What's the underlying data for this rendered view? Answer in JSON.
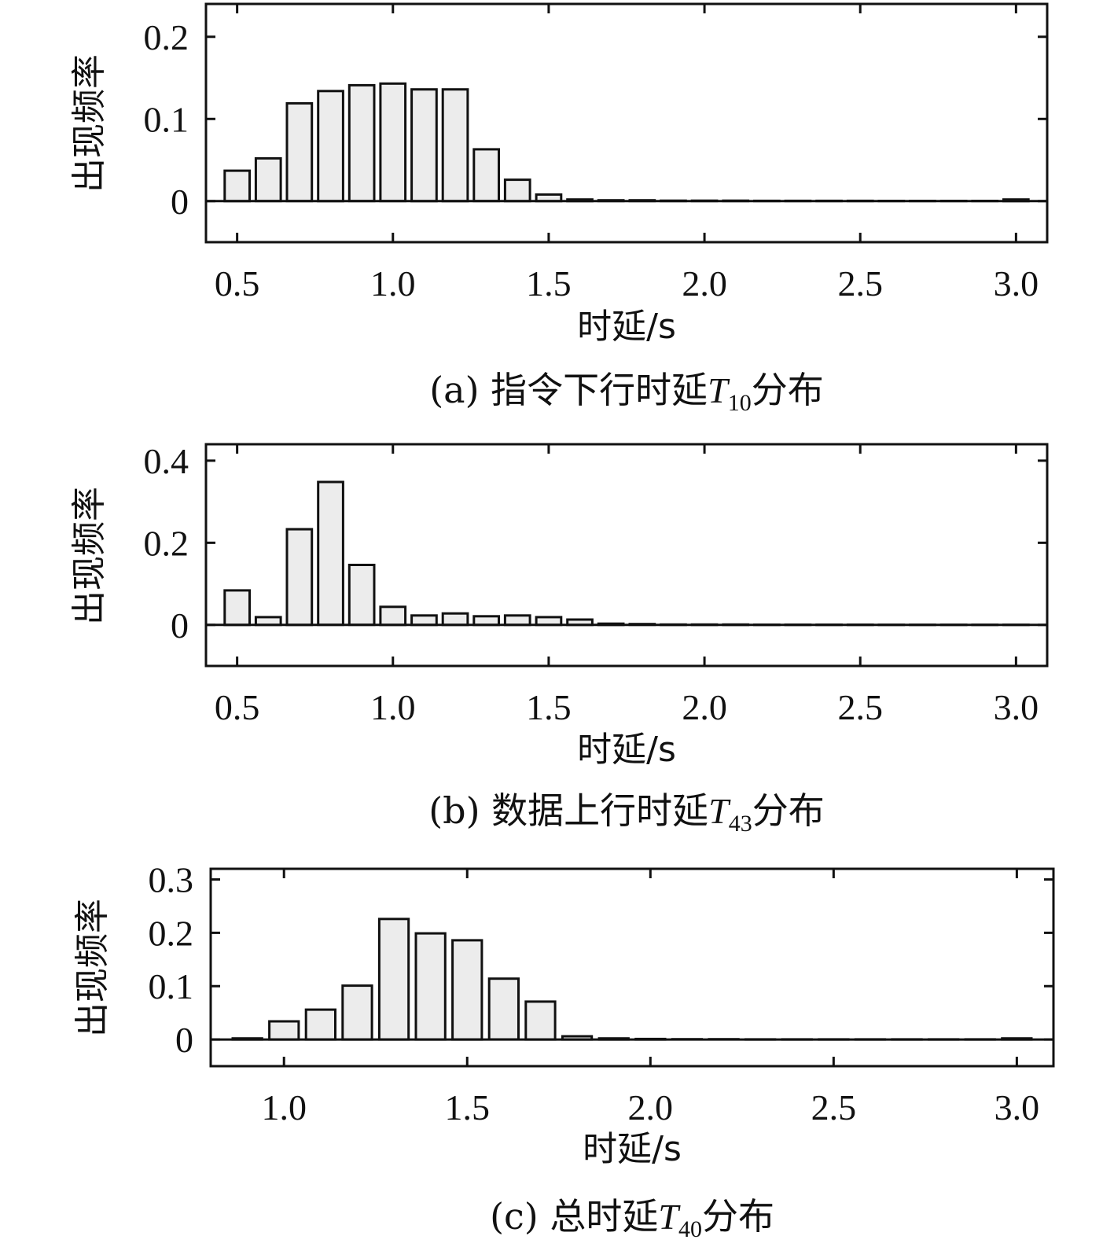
{
  "chart_data": [
    {
      "type": "bar",
      "title": "",
      "caption": {
        "prefix": "(a) 指令下行时延",
        "math": "T",
        "sub": "10",
        "suffix": "分布"
      },
      "xlabel": "时延/s",
      "ylabel": "出现频率",
      "xlim": [
        0.4,
        3.1
      ],
      "ylim": [
        -0.05,
        0.24
      ],
      "xticks": [
        0.5,
        1.0,
        1.5,
        2.0,
        2.5,
        3.0
      ],
      "xtick_labels": [
        "0.5",
        "1.0",
        "1.5",
        "2.0",
        "2.5",
        "3.0"
      ],
      "yticks": [
        0,
        0.1,
        0.2
      ],
      "ytick_labels": [
        "0",
        "0.1",
        "0.2"
      ],
      "bar_width": 0.08,
      "x": [
        0.5,
        0.6,
        0.7,
        0.8,
        0.9,
        1.0,
        1.1,
        1.2,
        1.3,
        1.4,
        1.5,
        1.6,
        1.7,
        1.8,
        1.9,
        2.0,
        2.1,
        2.2,
        2.3,
        2.4,
        2.5,
        2.6,
        2.7,
        2.8,
        2.9,
        3.0
      ],
      "values": [
        0.037,
        0.052,
        0.119,
        0.134,
        0.141,
        0.143,
        0.136,
        0.136,
        0.063,
        0.026,
        0.008,
        0.002,
        0.001,
        0.001,
        0.0005,
        0.0005,
        0.0005,
        0.0003,
        0.0003,
        0.0003,
        0.0003,
        0.0002,
        0.0002,
        0.0002,
        0.0002,
        0.002
      ]
    },
    {
      "type": "bar",
      "title": "",
      "caption": {
        "prefix": "(b) 数据上行时延",
        "math": "T",
        "sub": "43",
        "suffix": "分布"
      },
      "xlabel": "时延/s",
      "ylabel": "出现频率",
      "xlim": [
        0.4,
        3.1
      ],
      "ylim": [
        -0.1,
        0.44
      ],
      "xticks": [
        0.5,
        1.0,
        1.5,
        2.0,
        2.5,
        3.0
      ],
      "xtick_labels": [
        "0.5",
        "1.0",
        "1.5",
        "2.0",
        "2.5",
        "3.0"
      ],
      "yticks": [
        0,
        0.2,
        0.4
      ],
      "ytick_labels": [
        "0",
        "0.2",
        "0.4"
      ],
      "bar_width": 0.08,
      "x": [
        0.5,
        0.6,
        0.7,
        0.8,
        0.9,
        1.0,
        1.1,
        1.2,
        1.3,
        1.4,
        1.5,
        1.6,
        1.7,
        1.8,
        1.9,
        2.0,
        2.1,
        2.2,
        2.3,
        2.4,
        2.5,
        2.6,
        2.7,
        2.8,
        2.9,
        3.0
      ],
      "values": [
        0.084,
        0.019,
        0.233,
        0.348,
        0.146,
        0.044,
        0.023,
        0.028,
        0.021,
        0.023,
        0.019,
        0.013,
        0.003,
        0.002,
        0.001,
        0.001,
        0.001,
        0.0005,
        0.0005,
        0.0005,
        0.0005,
        0.0003,
        0.0003,
        0.0003,
        0.0003,
        0.0003
      ]
    },
    {
      "type": "bar",
      "title": "",
      "caption": {
        "prefix": "(c) 总时延",
        "math": "T",
        "sub": "40",
        "suffix": "分布"
      },
      "xlabel": "时延/s",
      "ylabel": "出现频率",
      "xlim": [
        0.8,
        3.1
      ],
      "ylim": [
        -0.05,
        0.32
      ],
      "xticks": [
        1.0,
        1.5,
        2.0,
        2.5,
        3.0
      ],
      "xtick_labels": [
        "1.0",
        "1.5",
        "2.0",
        "2.5",
        "3.0"
      ],
      "yticks": [
        0,
        0.1,
        0.2,
        0.3
      ],
      "ytick_labels": [
        "0",
        "0.1",
        "0.2",
        "0.3"
      ],
      "bar_width": 0.08,
      "x": [
        0.9,
        1.0,
        1.1,
        1.2,
        1.3,
        1.4,
        1.5,
        1.6,
        1.7,
        1.8,
        1.9,
        2.0,
        2.1,
        2.2,
        2.3,
        2.4,
        2.5,
        2.6,
        2.7,
        2.8,
        2.9,
        3.0
      ],
      "values": [
        0.002,
        0.034,
        0.056,
        0.101,
        0.226,
        0.199,
        0.186,
        0.114,
        0.071,
        0.006,
        0.002,
        0.001,
        0.0005,
        0.0005,
        0.0003,
        0.0003,
        0.0003,
        0.0003,
        0.0003,
        0.0003,
        0.0003,
        0.002
      ]
    }
  ],
  "colors": {
    "bar_fill": "#ececec",
    "stroke": "#111111",
    "background": "#ffffff"
  }
}
